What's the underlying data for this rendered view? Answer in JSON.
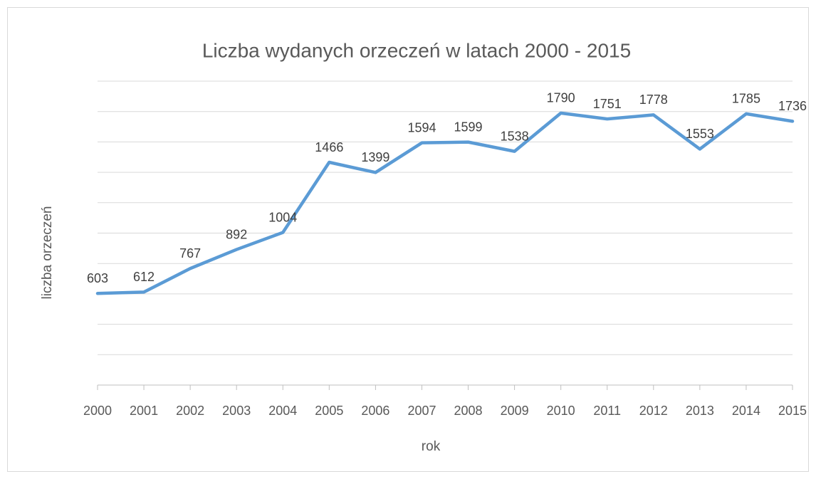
{
  "chart_data": {
    "type": "line",
    "title": "Liczba wydanych orzeczeń w latach 2000 - 2015",
    "x_label": "rok",
    "y_label": "liczba orzeczeń",
    "categories": [
      "2000",
      "2001",
      "2002",
      "2003",
      "2004",
      "2005",
      "2006",
      "2007",
      "2008",
      "2009",
      "2010",
      "2011",
      "2012",
      "2013",
      "2014",
      "2015"
    ],
    "series": [
      {
        "name": "liczba orzeczeń",
        "color": "#5b9bd5",
        "values": [
          603,
          612,
          767,
          892,
          1004,
          1466,
          1399,
          1594,
          1599,
          1538,
          1790,
          1751,
          1778,
          1553,
          1785,
          1736
        ]
      }
    ],
    "ylim": [
      0,
      2000
    ],
    "yticks": [
      0,
      200,
      400,
      600,
      800,
      1000,
      1200,
      1400,
      1600,
      1800,
      2000
    ],
    "grid": true
  }
}
